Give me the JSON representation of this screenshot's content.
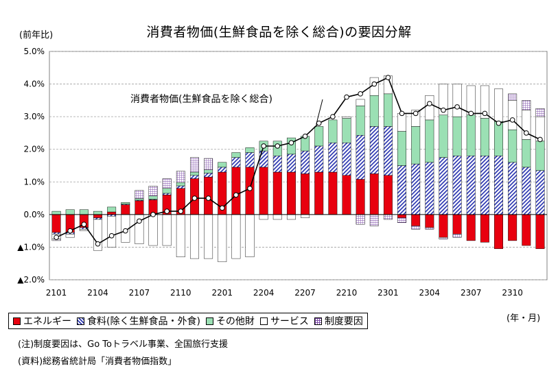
{
  "title": "消費者物価(生鮮食品を除く総合)の要因分解",
  "y_unit_label": "(前年比)",
  "x_unit_label": "(年・月)",
  "line_annotation": "消費者物価(生鮮食品を除く総合)",
  "notes": {
    "note": "(注)制度要因は、Go Toトラベル事業、全国旅行支援",
    "source": "(資料)総務省統計局「消費者物価指数」"
  },
  "legend": [
    {
      "key": "energy",
      "label": "エネルギー"
    },
    {
      "key": "food",
      "label": "食料(除く生鮮食品・外食)"
    },
    {
      "key": "other",
      "label": "その他財"
    },
    {
      "key": "service",
      "label": "サービス"
    },
    {
      "key": "policy",
      "label": "制度要因"
    }
  ],
  "colors": {
    "energy": "#e8000f",
    "food_hatch": "#2a35b0",
    "other": "#9be0b4",
    "policy_grid": "#7c4aa8",
    "line": "#000000",
    "grid": "#a0a0a0"
  },
  "chart_data": {
    "type": "bar",
    "stacked": true,
    "overlay_line": "total",
    "ylim": [
      -2.0,
      5.0
    ],
    "y_ticks": [
      5.0,
      4.0,
      3.0,
      2.0,
      1.0,
      0.0,
      -1.0,
      -2.0
    ],
    "y_tick_labels": [
      "5.0%",
      "4.0%",
      "3.0%",
      "2.0%",
      "1.0%",
      "0.0%",
      "▲1.0%",
      "▲2.0%"
    ],
    "x_tick_labels": [
      "2101",
      "2104",
      "2107",
      "2110",
      "2201",
      "2204",
      "2207",
      "2210",
      "2301",
      "2304",
      "2307",
      "2310"
    ],
    "x_tick_every": 3,
    "grid": true,
    "categories": [
      "2101",
      "2102",
      "2103",
      "2104",
      "2105",
      "2106",
      "2107",
      "2108",
      "2109",
      "2110",
      "2111",
      "2112",
      "2201",
      "2202",
      "2203",
      "2204",
      "2205",
      "2206",
      "2207",
      "2208",
      "2209",
      "2210",
      "2211",
      "2212",
      "2301",
      "2302",
      "2303",
      "2304",
      "2305",
      "2306",
      "2307",
      "2308",
      "2309",
      "2310",
      "2311",
      "2312"
    ],
    "series": [
      {
        "name": "エネルギー",
        "key": "energy",
        "values": [
          -0.55,
          -0.55,
          -0.4,
          -0.1,
          0.08,
          0.3,
          0.42,
          0.45,
          0.6,
          0.8,
          1.1,
          1.15,
          1.3,
          1.45,
          1.45,
          1.45,
          1.3,
          1.3,
          1.25,
          1.3,
          1.3,
          1.2,
          1.08,
          1.25,
          1.2,
          -0.1,
          -0.35,
          -0.4,
          -0.7,
          -0.6,
          -0.8,
          -0.85,
          -1.05,
          -0.8,
          -0.95,
          -1.05
        ]
      },
      {
        "name": "食料(除く生鮮食品・外食)",
        "key": "food",
        "values": [
          -0.05,
          -0.05,
          -0.05,
          -0.05,
          -0.05,
          0.02,
          0.02,
          0.02,
          0.05,
          0.08,
          0.1,
          0.12,
          0.15,
          0.3,
          0.45,
          0.5,
          0.5,
          0.55,
          0.7,
          0.8,
          0.9,
          1.0,
          1.35,
          1.45,
          1.5,
          1.5,
          1.55,
          1.6,
          1.75,
          1.8,
          1.8,
          1.8,
          1.8,
          1.6,
          1.45,
          1.35
        ]
      },
      {
        "name": "その他財",
        "key": "other",
        "values": [
          0.1,
          0.15,
          0.15,
          0.1,
          0.15,
          0.05,
          0.05,
          0.1,
          0.15,
          0.1,
          0.1,
          0.1,
          0.15,
          0.15,
          0.15,
          0.3,
          0.45,
          0.5,
          0.45,
          0.6,
          0.7,
          0.75,
          0.9,
          0.95,
          1.0,
          1.05,
          1.15,
          1.3,
          1.3,
          1.2,
          1.25,
          1.15,
          1.05,
          1.0,
          0.85,
          0.9
        ]
      },
      {
        "name": "サービス",
        "key": "service",
        "values": [
          -0.15,
          -0.1,
          -0.05,
          -0.95,
          -0.95,
          -0.85,
          -0.9,
          -0.95,
          -0.95,
          -1.3,
          -1.35,
          -1.35,
          -1.45,
          -1.35,
          -1.3,
          -0.15,
          -0.15,
          -0.15,
          -0.1,
          0.0,
          0.0,
          0.05,
          0.2,
          0.55,
          0.55,
          0.55,
          0.5,
          0.75,
          0.95,
          1.0,
          0.9,
          1.0,
          1.0,
          0.9,
          0.9,
          0.75
        ]
      },
      {
        "name": "制度要因",
        "key": "policy",
        "values": [
          -0.05,
          0.0,
          0.0,
          0.0,
          0.0,
          0.0,
          0.25,
          0.3,
          0.3,
          0.35,
          0.45,
          0.35,
          0.0,
          0.0,
          0.0,
          0.0,
          0.0,
          0.0,
          0.0,
          0.0,
          0.0,
          0.0,
          -0.3,
          -0.35,
          -0.15,
          -0.15,
          -0.1,
          -0.05,
          -0.05,
          -0.1,
          0.0,
          0.0,
          0.0,
          0.2,
          0.3,
          0.25
        ]
      },
      {
        "name": "消費者物価(生鮮食品を除く総合)",
        "key": "total",
        "type": "line",
        "values": [
          -0.7,
          -0.5,
          -0.3,
          -0.9,
          -0.65,
          -0.5,
          -0.2,
          0.0,
          0.1,
          0.1,
          0.5,
          0.5,
          0.2,
          0.6,
          0.8,
          2.1,
          2.1,
          2.2,
          2.4,
          2.8,
          3.0,
          3.6,
          3.7,
          4.0,
          4.2,
          3.1,
          3.1,
          3.4,
          3.2,
          3.3,
          3.1,
          3.1,
          2.8,
          2.9,
          2.5,
          2.3
        ]
      }
    ]
  }
}
